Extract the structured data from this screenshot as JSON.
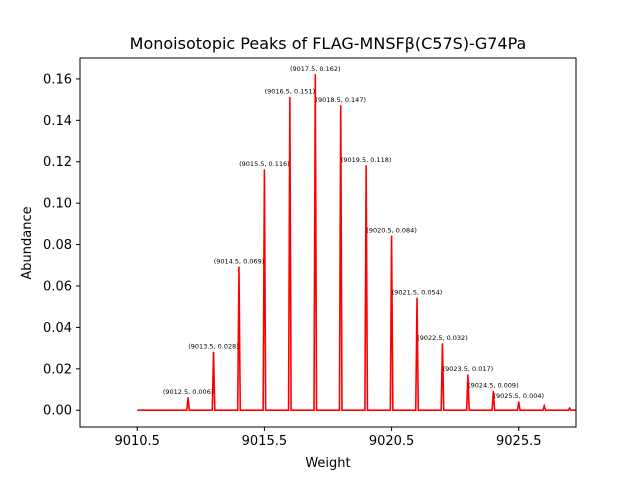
{
  "chart_data": {
    "type": "line",
    "title": "Monoisotopic Peaks of FLAG-MNSFβ(C57S)-G74Pa",
    "xlabel": "Weight",
    "ylabel": "Abundance",
    "xlim": [
      9008.25,
      9027.75
    ],
    "ylim": [
      -0.0081,
      0.1701
    ],
    "xticks": [
      9010.5,
      9015.5,
      9020.5,
      9025.5
    ],
    "xtick_labels": [
      "9010.5",
      "9015.5",
      "9020.5",
      "9025.5"
    ],
    "yticks": [
      0.0,
      0.02,
      0.04,
      0.06,
      0.08,
      0.1,
      0.12,
      0.14,
      0.16
    ],
    "ytick_labels": [
      "0.00",
      "0.02",
      "0.04",
      "0.06",
      "0.08",
      "0.10",
      "0.12",
      "0.14",
      "0.16"
    ],
    "line_color": "#ff0000",
    "baseline_range": [
      9010.5,
      9027.75
    ],
    "peak_half_width": 0.05,
    "peaks": [
      {
        "x": 9012.5,
        "y": 0.006,
        "label": "(9012.5, 0.006)"
      },
      {
        "x": 9013.5,
        "y": 0.028,
        "label": "(9013.5, 0.028)"
      },
      {
        "x": 9014.5,
        "y": 0.069,
        "label": "(9014.5, 0.069)"
      },
      {
        "x": 9015.5,
        "y": 0.116,
        "label": "(9015.5, 0.116)"
      },
      {
        "x": 9016.5,
        "y": 0.151,
        "label": "(9016.5, 0.151)"
      },
      {
        "x": 9017.5,
        "y": 0.162,
        "label": "(9017.5, 0.162)"
      },
      {
        "x": 9018.5,
        "y": 0.147,
        "label": "(9018.5, 0.147)"
      },
      {
        "x": 9019.5,
        "y": 0.118,
        "label": "(9019.5, 0.118)"
      },
      {
        "x": 9020.5,
        "y": 0.084,
        "label": "(9020.5, 0.084)"
      },
      {
        "x": 9021.5,
        "y": 0.054,
        "label": "(9021.5, 0.054)"
      },
      {
        "x": 9022.5,
        "y": 0.032,
        "label": "(9022.5, 0.032)"
      },
      {
        "x": 9023.5,
        "y": 0.017,
        "label": "(9023.5, 0.017)"
      },
      {
        "x": 9024.5,
        "y": 0.009,
        "label": "(9024.5, 0.009)"
      },
      {
        "x": 9025.5,
        "y": 0.004,
        "label": "(9025.5, 0.004)"
      },
      {
        "x": 9026.5,
        "y": 0.002,
        "label": ""
      },
      {
        "x": 9027.5,
        "y": 0.001,
        "label": ""
      }
    ],
    "grid": false,
    "legend": "none"
  }
}
